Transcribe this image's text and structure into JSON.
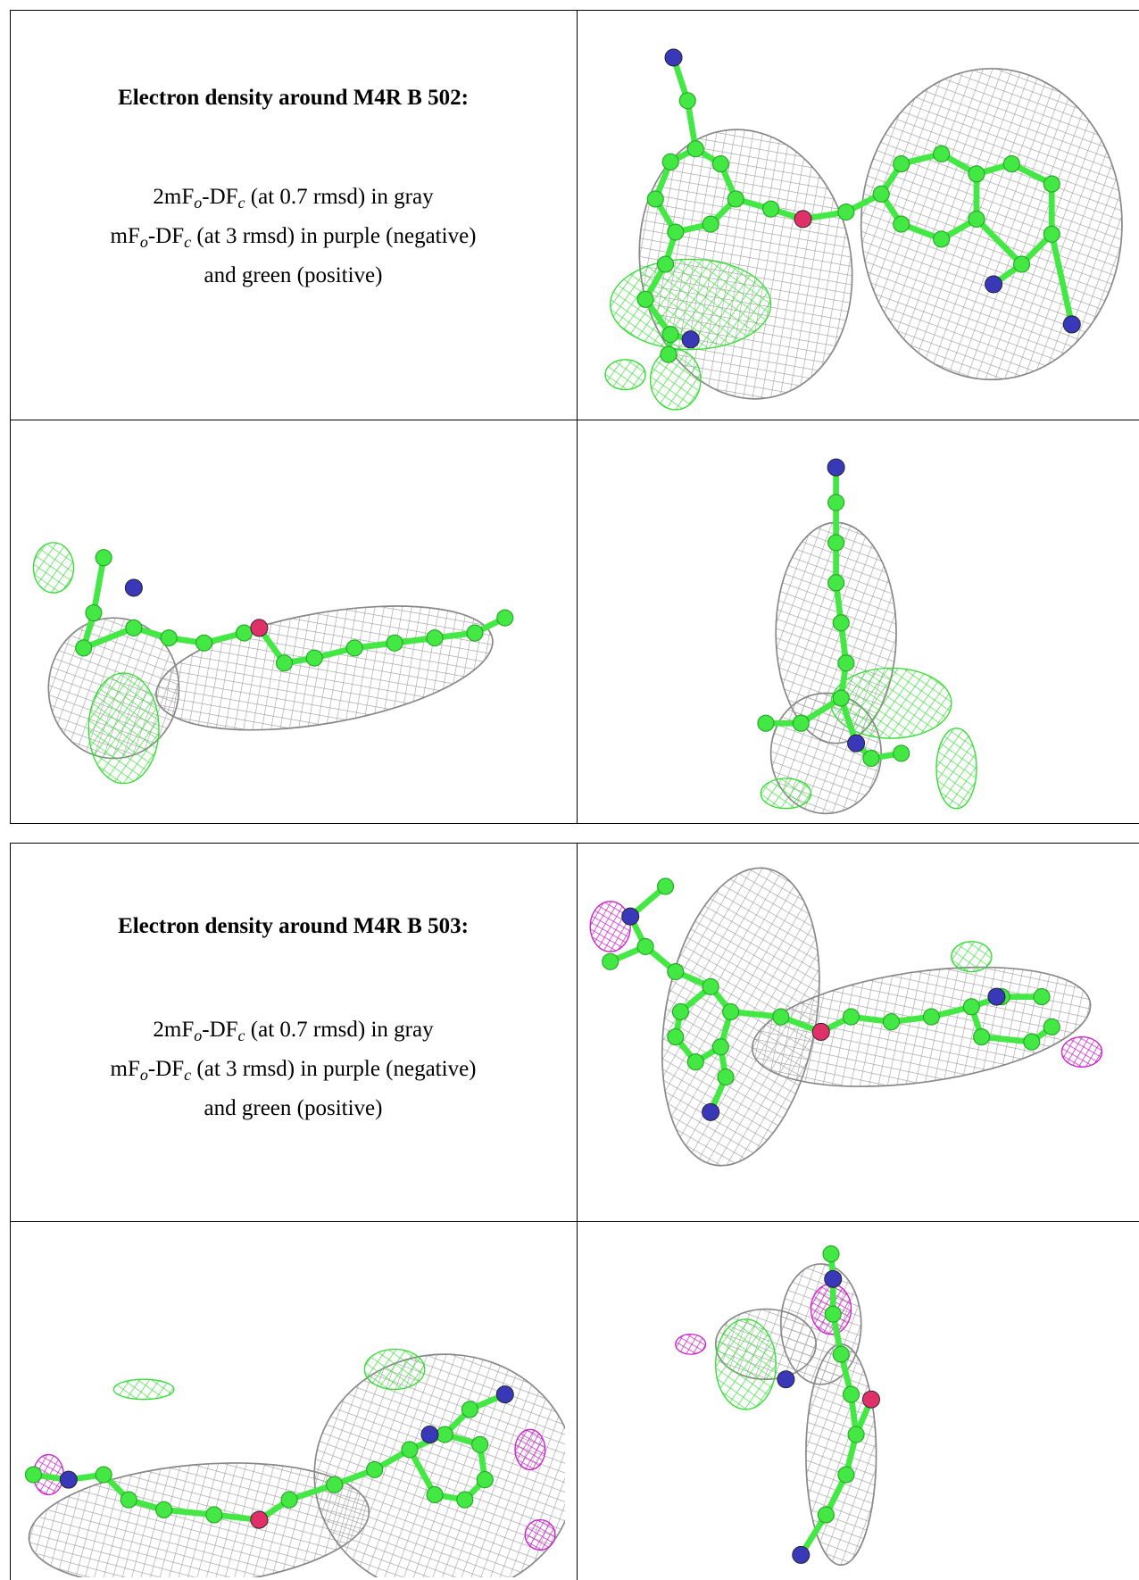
{
  "tables": [
    {
      "title": "Electron density around M4R B 502:",
      "lines": [
        [
          "2mF",
          "o",
          "-DF",
          "c",
          " (at 0.7 rmsd) in gray"
        ],
        [
          "mF",
          "o",
          "-DF",
          "c",
          " (at 3 rmsd) in purple (negative)"
        ],
        [
          "and green (positive)"
        ]
      ]
    },
    {
      "title": "Electron density around M4R B 503:",
      "lines": [
        [
          "2mF",
          "o",
          "-DF",
          "c",
          " (at 0.7 rmsd) in gray"
        ],
        [
          "mF",
          "o",
          "-DF",
          "c",
          " (at 3 rmsd) in purple (negative)"
        ],
        [
          "and green (positive)"
        ]
      ]
    }
  ]
}
